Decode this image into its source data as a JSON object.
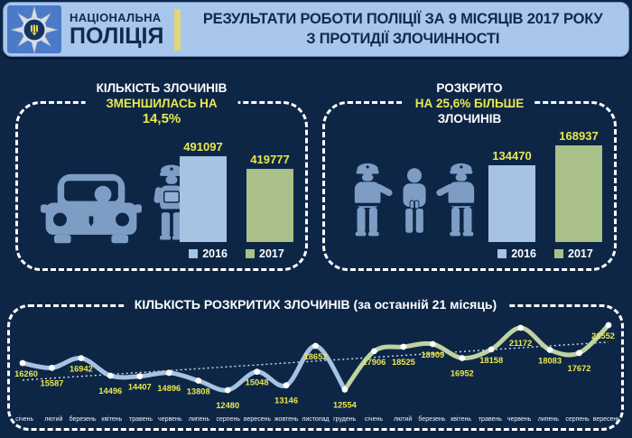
{
  "header": {
    "org_name_line1": "НАЦІОНАЛЬНА",
    "org_name_line2": "ПОЛІЦІЯ",
    "title_line1": "РЕЗУЛЬТАТИ РОБОТИ ПОЛІЦІЇ ЗА 9 МІСЯЦІВ 2017 РОКУ",
    "title_line2": "З ПРОТИДІЇ ЗЛОЧИННОСТІ"
  },
  "colors": {
    "background": "#0e2646",
    "header_bg": "#a9c6ec",
    "header_text": "#12294f",
    "logo_bg": "#4b7ac8",
    "accent_yellow": "#e9e84e",
    "bar_2016_blue": "#a6c3e3",
    "bar_2017_green": "#a9c088",
    "icon_slate_blue": "#7e9dc4",
    "line_2016_blue": "#a6c3e3",
    "line_2017_green": "#bfd2a2",
    "marker_white": "#ffffff",
    "trend_dotted": "#cfdff0",
    "panel_border_white": "#ffffff",
    "divider_yellow": "#e3d57a"
  },
  "panels": {
    "crimes": {
      "title_line1": "КІЛЬКІСТЬ ЗЛОЧИНІВ",
      "title_line2": "ЗМЕНШИЛАСЬ НА",
      "title_line3": "14,5%"
    },
    "solved": {
      "title_line1": "РОЗКРИТО",
      "title_line2": "НА 25,6% БІЛЬШЕ",
      "title_line3": "ЗЛОЧИНІВ"
    },
    "monthly": {
      "title": "КІЛЬКІСТЬ РОЗКРИТИХ ЗЛОЧИНІВ (за останній 21 місяць)"
    }
  },
  "chart_data": [
    {
      "type": "bar",
      "title": "КІЛЬКІСТЬ ЗЛОЧИНІВ ЗМЕНШИЛАСЬ НА 14,5%",
      "categories": [
        "2016",
        "2017"
      ],
      "values": [
        491097,
        419777
      ],
      "colors": [
        "#a6c3e3",
        "#a9c088"
      ],
      "legend_position": "bottom",
      "data_labels": true
    },
    {
      "type": "bar",
      "title": "РОЗКРИТО НА 25,6% БІЛЬШЕ ЗЛОЧИНІВ",
      "categories": [
        "2016",
        "2017"
      ],
      "values": [
        134470,
        168937
      ],
      "colors": [
        "#a6c3e3",
        "#a9c088"
      ],
      "legend_position": "bottom",
      "data_labels": true
    },
    {
      "type": "line",
      "title": "КІЛЬКІСТЬ РОЗКРИТИХ ЗЛОЧИНІВ (за останній 21 місяць)",
      "categories": [
        "січень",
        "лютий",
        "березень",
        "квітень",
        "травень",
        "червень",
        "липень",
        "серпень",
        "вересень",
        "жовтень",
        "листопад",
        "грудень",
        "січень",
        "лютий",
        "березень",
        "квітень",
        "травень",
        "червень",
        "липень",
        "серпень",
        "вересень"
      ],
      "values": [
        16260,
        15587,
        16942,
        14496,
        14407,
        14896,
        13808,
        12480,
        15048,
        13146,
        18652,
        12554,
        17906,
        18525,
        18909,
        16952,
        18158,
        21172,
        18083,
        17672,
        21552
      ],
      "ylim": [
        12000,
        22000
      ],
      "year_split_index": 12,
      "series_colors": {
        "2016": "#a6c3e3",
        "2017": "#bfd2a2"
      },
      "trendline": true,
      "data_labels": true,
      "grid": false
    }
  ]
}
